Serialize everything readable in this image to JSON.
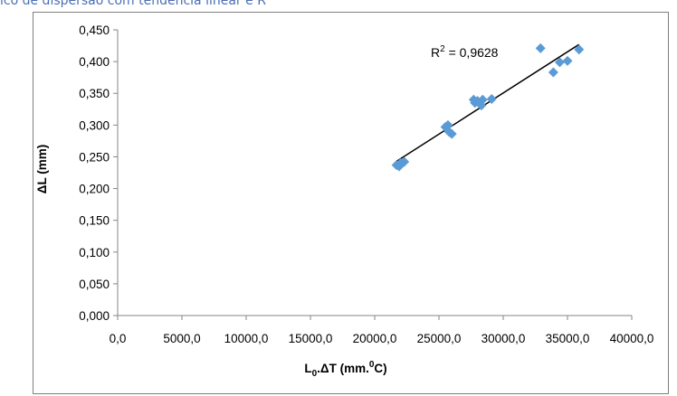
{
  "caption": "ico de dispersão com tendência linear e R",
  "chart_data": {
    "type": "scatter",
    "title": "",
    "xlabel_main": "L",
    "xlabel_sub": "0",
    "xlabel_rest": ".ΔT (mm.",
    "xlabel_sup": "0",
    "xlabel_end": "C)",
    "ylabel": "ΔL (mm)",
    "xlim": [
      0,
      40000
    ],
    "ylim": [
      0,
      0.45
    ],
    "x_ticks": [
      0,
      5000,
      10000,
      15000,
      20000,
      25000,
      30000,
      35000,
      40000
    ],
    "x_tick_labels": [
      "0,0",
      "5000,0",
      "10000,0",
      "15000,0",
      "20000,0",
      "25000,0",
      "30000,0",
      "35000,0",
      "40000,0"
    ],
    "y_ticks": [
      0,
      0.05,
      0.1,
      0.15,
      0.2,
      0.25,
      0.3,
      0.35,
      0.4,
      0.45
    ],
    "y_tick_labels": [
      "0,000",
      "0,050",
      "0,100",
      "0,150",
      "0,200",
      "0,250",
      "0,300",
      "0,350",
      "0,400",
      "0,450"
    ],
    "grid": false,
    "marker_color": "#5b9bd5",
    "trendline_color": "#000000",
    "trendline": {
      "type": "linear",
      "x": [
        21700,
        35900
      ],
      "y": [
        0.243,
        0.427
      ]
    },
    "annotation": {
      "label": "R",
      "sup": "2",
      "rest": " = 0,9628"
    },
    "points": [
      {
        "x": 21700,
        "y": 0.237
      },
      {
        "x": 21900,
        "y": 0.235
      },
      {
        "x": 22000,
        "y": 0.24
      },
      {
        "x": 22300,
        "y": 0.242
      },
      {
        "x": 25500,
        "y": 0.297
      },
      {
        "x": 25700,
        "y": 0.3
      },
      {
        "x": 25800,
        "y": 0.289
      },
      {
        "x": 26000,
        "y": 0.286
      },
      {
        "x": 27700,
        "y": 0.34
      },
      {
        "x": 27800,
        "y": 0.335
      },
      {
        "x": 28000,
        "y": 0.338
      },
      {
        "x": 28300,
        "y": 0.331
      },
      {
        "x": 28400,
        "y": 0.34
      },
      {
        "x": 29100,
        "y": 0.341
      },
      {
        "x": 32900,
        "y": 0.421
      },
      {
        "x": 33900,
        "y": 0.383
      },
      {
        "x": 34400,
        "y": 0.399
      },
      {
        "x": 35000,
        "y": 0.401
      },
      {
        "x": 35900,
        "y": 0.419
      }
    ]
  }
}
